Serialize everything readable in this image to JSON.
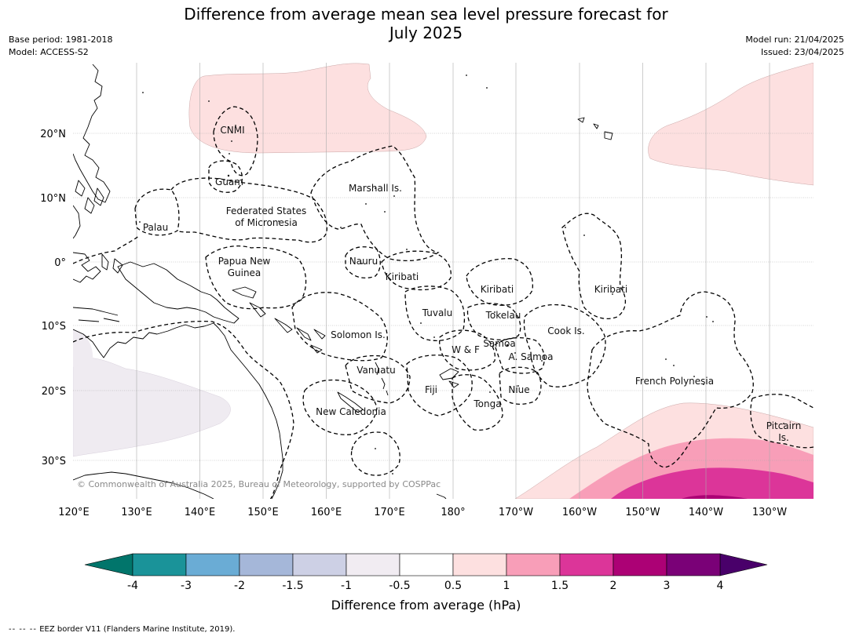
{
  "title_line1": "Difference from average mean sea level pressure forecast for",
  "title_line2": "July 2025",
  "meta": {
    "base_period": "Base period: 1981-2018",
    "model": "Model: ACCESS-S2",
    "model_run": "Model run: 21/04/2025",
    "issued": "Issued: 23/04/2025"
  },
  "copyright": "© Commonwealth of Australia 2025, Bureau of Meteorology, supported by COSPPac",
  "axes": {
    "lon_labels": [
      "120°E",
      "130°E",
      "140°E",
      "150°E",
      "160°E",
      "170°E",
      "180°",
      "170°W",
      "160°W",
      "150°W",
      "140°W",
      "130°W"
    ],
    "lat_labels": [
      "20°N",
      "10°N",
      "0°",
      "10°S",
      "20°S",
      "30°S"
    ]
  },
  "regions": [
    {
      "name": "CNMI"
    },
    {
      "name": "Guam"
    },
    {
      "name": "Marshall Is."
    },
    {
      "name": "Federated States"
    },
    {
      "name": "of Micronesia"
    },
    {
      "name": "Palau"
    },
    {
      "name": "Papua New"
    },
    {
      "name": "Guinea"
    },
    {
      "name": "Nauru"
    },
    {
      "name": "Kiribati"
    },
    {
      "name": "Kiribati"
    },
    {
      "name": "Kiribati"
    },
    {
      "name": "Tuvalu"
    },
    {
      "name": "Tokelau"
    },
    {
      "name": "Cook Is."
    },
    {
      "name": "Solomon Is."
    },
    {
      "name": "Samoa"
    },
    {
      "name": "W & F"
    },
    {
      "name": "A. Samoa"
    },
    {
      "name": "Vanuatu"
    },
    {
      "name": "Fiji"
    },
    {
      "name": "Niue"
    },
    {
      "name": "Tonga"
    },
    {
      "name": "French Polynesia"
    },
    {
      "name": "New Caledonia"
    },
    {
      "name": "Pitcairn"
    },
    {
      "name": "Is."
    }
  ],
  "legend": {
    "ticks": [
      "-4",
      "-3",
      "-2",
      "-1.5",
      "-1",
      "-0.5",
      "0.5",
      "1",
      "1.5",
      "2",
      "3",
      "4"
    ],
    "colors": [
      "#1a9399",
      "#6aacd5",
      "#a5b7d9",
      "#cdd0e5",
      "#f1ecf2",
      "#ffffff",
      "#fde0e0",
      "#f89eb8",
      "#dc3599",
      "#ac0175",
      "#7a0177"
    ],
    "under_color": "#01756b",
    "over_color": "#49006a",
    "label": "Difference from average (hPa)"
  },
  "footnote": {
    "symbol": "-- -- --",
    "text": "EEZ border V11 (Flanders Marine Institute, 2019)."
  }
}
